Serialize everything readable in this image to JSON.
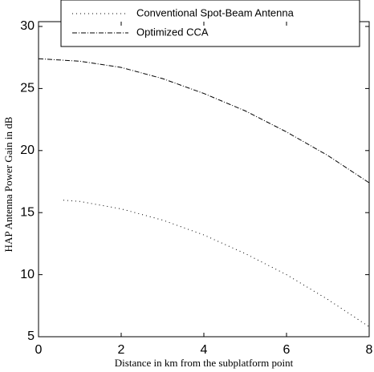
{
  "chart_data": {
    "type": "line",
    "xlabel": "Distance in km from the subplatform point",
    "ylabel": "HAP Antenna Power Gain in dB",
    "xlim": [
      0,
      8
    ],
    "ylim": [
      5,
      30
    ],
    "xticks": [
      0,
      2,
      4,
      6,
      8
    ],
    "yticks": [
      5,
      10,
      15,
      20,
      25,
      30
    ],
    "grid": false,
    "series": [
      {
        "name": "Conventional Spot-Beam Antenna",
        "color": "#000000",
        "dash": "1 4",
        "x": [
          0.6,
          1,
          2,
          3,
          4,
          5,
          6,
          7,
          8
        ],
        "values": [
          16.0,
          15.9,
          15.3,
          14.4,
          13.2,
          11.7,
          10.0,
          8.0,
          5.8
        ]
      },
      {
        "name": "Optimized CCA",
        "color": "#000000",
        "dash": "6 2 1 2",
        "x": [
          0,
          1,
          2,
          3,
          4,
          5,
          6,
          7,
          8
        ],
        "values": [
          27.4,
          27.2,
          26.7,
          25.8,
          24.6,
          23.2,
          21.5,
          19.6,
          17.4
        ]
      }
    ]
  }
}
